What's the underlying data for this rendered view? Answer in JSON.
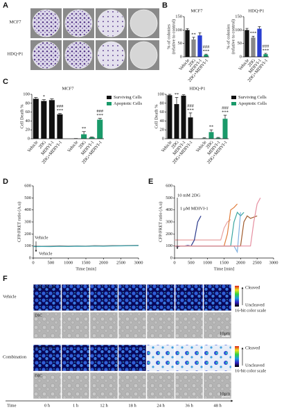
{
  "panel_labels": [
    "A",
    "B",
    "C",
    "D",
    "E",
    "F"
  ],
  "panel_a": {
    "rows": [
      "MCF7",
      "HDQ-P1"
    ]
  },
  "chart_data": [
    {
      "type": "bar",
      "title": "MCF7",
      "ylabel": [
        "% of colonies",
        "(relative to control)"
      ],
      "categories": [
        "Vehicle",
        "2DG",
        "MDIVI-1",
        "2DG+MDIVI-1"
      ],
      "values": [
        100,
        65,
        80,
        8
      ],
      "errors": [
        5,
        8,
        10,
        2
      ],
      "colors": [
        "#111111",
        "#888888",
        "#2a3fd1",
        "#1a9a6a"
      ],
      "annotations": [
        null,
        "**",
        null,
        [
          "###",
          "***"
        ]
      ],
      "ylim": [
        0,
        150
      ],
      "yticks": [
        0,
        50,
        100,
        150
      ]
    },
    {
      "type": "bar",
      "title": "HDQ-P1",
      "ylabel": [
        "% of colonies",
        "(relative to control)"
      ],
      "categories": [
        "Vehicle",
        "2DG",
        "MDIVI-1",
        "2DG+MDIVI-1"
      ],
      "values": [
        100,
        72,
        105,
        10
      ],
      "errors": [
        6,
        5,
        8,
        3
      ],
      "colors": [
        "#111111",
        "#888888",
        "#2a3fd1",
        "#1a9a6a"
      ],
      "annotations": [
        null,
        "***",
        null,
        [
          "###",
          "***"
        ]
      ],
      "ylim": [
        0,
        150
      ],
      "yticks": [
        0,
        50,
        100,
        150
      ]
    },
    {
      "type": "grouped_bar",
      "title": "MCF7",
      "ylabel": "Cell Death %",
      "categories": [
        "Vehicle",
        "2DG",
        "MDIVI-1",
        "2DG+MDIVI-1"
      ],
      "series": [
        {
          "name": "Surviving Cells",
          "color": "#111111",
          "values": [
            90,
            85,
            87,
            55
          ],
          "errors": [
            3,
            3,
            3,
            2
          ],
          "annotations": [
            null,
            "*",
            null,
            [
              "###",
              "***"
            ]
          ]
        },
        {
          "name": "Apoptotic Cells",
          "color": "#1a9a6a",
          "values": [
            0,
            10,
            3,
            43
          ],
          "errors": [
            0.5,
            6,
            1,
            3
          ],
          "annotations": [
            null,
            "**",
            null,
            [
              "###",
              "***"
            ]
          ]
        }
      ],
      "ylim": [
        0,
        100
      ],
      "yticks": [
        0,
        20,
        40,
        60,
        80,
        100
      ]
    },
    {
      "type": "grouped_bar",
      "title": "HDQ-P1",
      "ylabel": "Cell Death %",
      "categories": [
        "Vehicle",
        "2DG",
        "MDIVI-1",
        "2DG+MDIVI-1"
      ],
      "series": [
        {
          "name": "Surviving Cells",
          "color": "#111111",
          "values": [
            98,
            78,
            97,
            48
          ],
          "errors": [
            2,
            15,
            2,
            10
          ],
          "annotations": [
            null,
            "**",
            null,
            [
              "###",
              "***"
            ]
          ]
        },
        {
          "name": "Apoptotic Cells",
          "color": "#1a9a6a",
          "values": [
            1,
            15,
            2,
            45
          ],
          "errors": [
            1,
            5,
            1,
            8
          ],
          "annotations": [
            null,
            "**",
            null,
            [
              "###",
              "***"
            ]
          ]
        }
      ],
      "ylim": [
        0,
        100
      ],
      "yticks": [
        0,
        20,
        40,
        60,
        80,
        100
      ]
    },
    {
      "type": "line",
      "ylabel": "CFP/FRET ratio (A.u)",
      "xlabel": "Time [min]",
      "x": [
        0,
        250,
        500,
        750,
        1000,
        1250,
        1500,
        1750,
        2000,
        2250,
        2500,
        2750,
        3000
      ],
      "series": [
        {
          "color": "#9a8a8a",
          "values": [
            100,
            98,
            100,
            102,
            100,
            101,
            100,
            103,
            102,
            104,
            103,
            105,
            106
          ]
        },
        {
          "color": "#3aa6b0",
          "values": [
            95,
            96,
            95,
            97,
            96,
            98,
            97,
            99,
            98,
            100,
            101,
            102,
            103
          ]
        }
      ],
      "annotations": [
        "Vehicle",
        "Vehicle"
      ],
      "xlim": [
        0,
        3000
      ],
      "ylim": [
        0,
        600
      ],
      "xticks": [
        0,
        500,
        1000,
        1500,
        2000,
        2500,
        3000
      ],
      "yticks": [
        0,
        100,
        200,
        300,
        400,
        500,
        600
      ]
    },
    {
      "type": "line",
      "ylabel": "CFP/FRET ratio (A.u)",
      "xlabel": "Time [min]",
      "x": [
        0,
        100,
        200,
        300,
        400,
        500,
        600,
        700,
        800,
        900,
        1000,
        1100,
        1200,
        1300,
        1400,
        1500,
        1600,
        1700,
        1800,
        1900,
        2000,
        2100,
        2200,
        2300,
        2400,
        2500,
        2600
      ],
      "series": [
        {
          "color": "#e8a0a0",
          "values": [
            150,
            150,
            150,
            150,
            150,
            150,
            150,
            150,
            150,
            150,
            150,
            150,
            150,
            150,
            150,
            250,
            300,
            320,
            null,
            null,
            null,
            null,
            null,
            null,
            null,
            null,
            null
          ]
        },
        {
          "color": "#2b3a8c",
          "values": [
            100,
            95,
            100,
            100,
            105,
            100,
            150,
            300,
            350,
            null,
            null,
            null,
            null,
            null,
            null,
            null,
            null,
            null,
            null,
            null,
            null,
            null,
            null,
            null,
            null,
            null,
            null
          ]
        },
        {
          "color": "#e07b39",
          "values": [
            100,
            100,
            100,
            100,
            100,
            100,
            100,
            100,
            100,
            100,
            100,
            100,
            100,
            100,
            100,
            100,
            200,
            400,
            420,
            450,
            null,
            null,
            null,
            null,
            null,
            null,
            null
          ]
        },
        {
          "color": "#3aa6a0",
          "values": [
            100,
            100,
            100,
            100,
            100,
            100,
            100,
            100,
            100,
            100,
            100,
            100,
            100,
            100,
            100,
            100,
            100,
            100,
            300,
            380,
            350,
            380,
            null,
            null,
            null,
            null,
            null
          ]
        },
        {
          "color": "#7fb0e0",
          "values": [
            100,
            100,
            100,
            100,
            100,
            100,
            100,
            100,
            100,
            100,
            100,
            100,
            100,
            100,
            100,
            100,
            100,
            100,
            100,
            50,
            380,
            null,
            null,
            null,
            null,
            null,
            null
          ]
        },
        {
          "color": "#a05a2c",
          "values": [
            100,
            100,
            100,
            100,
            100,
            100,
            100,
            100,
            100,
            100,
            100,
            100,
            100,
            100,
            100,
            100,
            100,
            100,
            100,
            100,
            100,
            300,
            350,
            330,
            340,
            350,
            null
          ]
        },
        {
          "color": "#e68fa0",
          "values": [
            100,
            100,
            100,
            100,
            100,
            100,
            100,
            100,
            100,
            100,
            100,
            100,
            100,
            100,
            100,
            100,
            100,
            100,
            100,
            100,
            100,
            100,
            100,
            100,
            300,
            450,
            500
          ]
        }
      ],
      "annotations": [
        "10 mM 2DG",
        "1 μM MDIVI-1"
      ],
      "xlim": [
        0,
        3000
      ],
      "ylim": [
        0,
        600
      ],
      "xticks": [
        0,
        500,
        1000,
        1500,
        2000,
        2500,
        3000
      ],
      "yticks": [
        0,
        100,
        200,
        300,
        400,
        500,
        600
      ]
    }
  ],
  "panel_f": {
    "rows": [
      {
        "group": "Vehicle",
        "channels": [
          "FRET/CFP",
          "DIC"
        ]
      },
      {
        "group": "Combination",
        "channels": [
          "FRET/CFP",
          "DIC"
        ]
      }
    ],
    "scale": {
      "top": "Cleaved",
      "bottom": "Uncleaved",
      "caption": "16-bit color scale"
    },
    "scale_bar": "10μm",
    "time_label": "Time",
    "times": [
      "0 h",
      "1 h",
      "12 h",
      "18 h",
      "24 h",
      "36 h",
      "48 h"
    ]
  }
}
